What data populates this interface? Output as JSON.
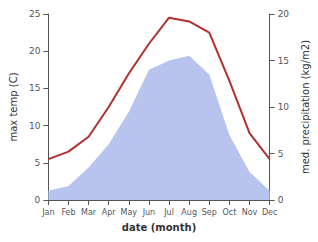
{
  "chart_data": {
    "type": "line",
    "categories": [
      "Jan",
      "Feb",
      "Mar",
      "Apr",
      "May",
      "Jun",
      "Jul",
      "Aug",
      "Sep",
      "Oct",
      "Nov",
      "Dec"
    ],
    "series": [
      {
        "type": "area",
        "axis": "y2",
        "color": "#b8c4ee",
        "values": [
          1,
          1.5,
          3.5,
          6,
          9.5,
          14,
          15,
          15.5,
          13.5,
          7,
          3,
          1
        ]
      },
      {
        "type": "line",
        "color": "#b03030",
        "values": [
          5.5,
          6.5,
          8.5,
          12.5,
          17,
          21,
          24.5,
          24,
          22.5,
          16,
          9,
          5.5
        ]
      }
    ],
    "xlabel": "date (month)",
    "ylabel": "max temp (C)",
    "y2label": "med. precipitation (kg/m2)",
    "ylim": [
      0,
      25
    ],
    "yticks": [
      0,
      5,
      10,
      15,
      20,
      25
    ],
    "y2lim": [
      0,
      20
    ],
    "y2ticks": [
      0,
      5,
      10,
      15,
      20
    ],
    "grid": false
  }
}
